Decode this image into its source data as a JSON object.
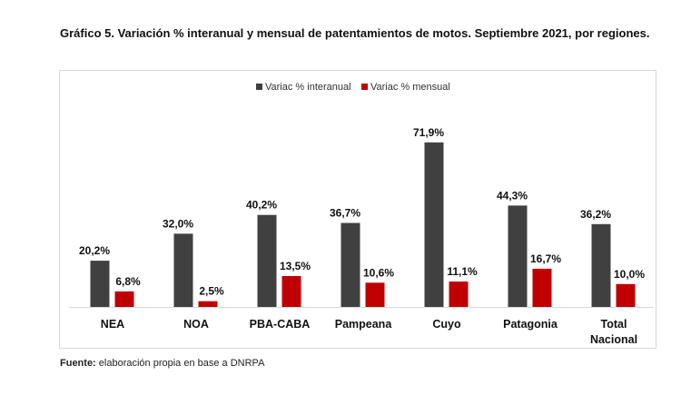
{
  "chart_data": {
    "type": "bar",
    "title": "Gráfico 5. Variación % interanual y mensual de patentamientos de motos. Septiembre 2021, por regiones.",
    "categories": [
      "NEA",
      "NOA",
      "PBA-CABA",
      "Pampeana",
      "Cuyo",
      "Patagonia",
      "Total Nacional"
    ],
    "series": [
      {
        "name": "Variac % interanual",
        "color": "#404040",
        "values": [
          20.2,
          32.0,
          40.2,
          36.7,
          71.9,
          44.3,
          36.2
        ],
        "labels": [
          "20,2%",
          "32,0%",
          "40,2%",
          "36,7%",
          "71,9%",
          "44,3%",
          "36,2%"
        ]
      },
      {
        "name": "Variac % mensual",
        "color": "#c00000",
        "values": [
          6.8,
          2.5,
          13.5,
          10.6,
          11.1,
          16.7,
          10.0
        ],
        "labels": [
          "6,8%",
          "2,5%",
          "13,5%",
          "10,6%",
          "11,1%",
          "16,7%",
          "10,0%"
        ]
      }
    ],
    "legend_position": "top",
    "grid": false,
    "ylim": [
      0,
      75
    ]
  },
  "source": {
    "label": "Fuente:",
    "text": " elaboración propia en base a DNRPA"
  }
}
